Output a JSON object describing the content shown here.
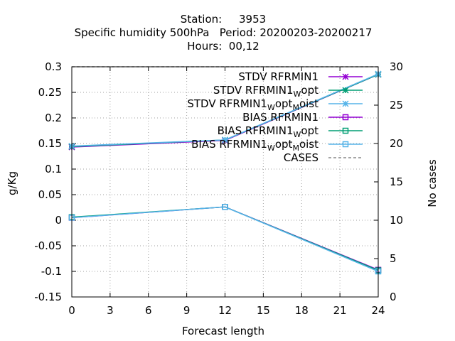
{
  "chart_data": {
    "type": "line",
    "title_lines": [
      "Station:     3953",
      "Specific humidity 500hPa   Period: 20200203-20200217",
      "Hours:  00,12"
    ],
    "xlabel": "Forecast length",
    "ylabel": "g/Kg",
    "y2label": "No cases",
    "x_ticks": [
      0,
      3,
      6,
      9,
      12,
      15,
      18,
      21,
      24
    ],
    "y_ticks": [
      -0.15,
      -0.1,
      -0.05,
      0,
      0.05,
      0.1,
      0.15,
      0.2,
      0.25,
      0.3
    ],
    "y_tick_labels": [
      "-0.15",
      "-0.1",
      "-0.05",
      "0",
      "0.05",
      "0.1",
      "0.15",
      "0.2",
      "0.25",
      "0.3"
    ],
    "y2_ticks": [
      0,
      5,
      10,
      15,
      20,
      25,
      30
    ],
    "xlim": [
      0,
      24
    ],
    "ylim": [
      -0.15,
      0.3
    ],
    "y2lim": [
      0,
      30
    ],
    "grid": true,
    "legend_position": "top-right",
    "series": [
      {
        "name": "STDV RFRMIN1",
        "name_parts": [
          {
            "text": "STDV RFRMIN1"
          }
        ],
        "color": "#9400d3",
        "marker": "star",
        "axis": "y",
        "x": [
          0,
          12,
          24
        ],
        "values": [
          0.143,
          0.156,
          0.285
        ]
      },
      {
        "name": "STDV RFRMIN1_W opt",
        "name_parts": [
          {
            "text": "STDV RFRMIN1"
          },
          {
            "text": "W",
            "sub": true
          },
          {
            "text": "opt"
          }
        ],
        "color": "#009e73",
        "marker": "star",
        "axis": "y",
        "x": [
          0,
          12,
          24
        ],
        "values": [
          0.144,
          0.157,
          0.285
        ]
      },
      {
        "name": "STDV RFRMIN1_W opt_M oist",
        "name_parts": [
          {
            "text": "STDV RFRMIN1"
          },
          {
            "text": "W",
            "sub": true
          },
          {
            "text": "opt"
          },
          {
            "text": "M",
            "sub": true
          },
          {
            "text": "oist"
          }
        ],
        "color": "#56b4e9",
        "marker": "star",
        "axis": "y",
        "x": [
          0,
          12,
          24
        ],
        "values": [
          0.145,
          0.157,
          0.286
        ]
      },
      {
        "name": "BIAS RFRMIN1",
        "name_parts": [
          {
            "text": "BIAS RFRMIN1"
          }
        ],
        "color": "#9400d3",
        "marker": "square",
        "axis": "y",
        "x": [
          0,
          12,
          24
        ],
        "values": [
          0.005,
          0.026,
          -0.097
        ]
      },
      {
        "name": "BIAS RFRMIN1_W opt",
        "name_parts": [
          {
            "text": "BIAS RFRMIN1"
          },
          {
            "text": "W",
            "sub": true
          },
          {
            "text": "opt"
          }
        ],
        "color": "#009e73",
        "marker": "square",
        "axis": "y",
        "x": [
          0,
          12,
          24
        ],
        "values": [
          0.006,
          0.026,
          -0.098
        ]
      },
      {
        "name": "BIAS RFRMIN1_W opt_M oist",
        "name_parts": [
          {
            "text": "BIAS RFRMIN1"
          },
          {
            "text": "W",
            "sub": true
          },
          {
            "text": "opt"
          },
          {
            "text": "M",
            "sub": true
          },
          {
            "text": "oist"
          }
        ],
        "color": "#56b4e9",
        "marker": "square",
        "axis": "y",
        "x": [
          0,
          12,
          24
        ],
        "values": [
          0.005,
          0.026,
          -0.1
        ]
      },
      {
        "name": "CASES",
        "name_parts": [
          {
            "text": "CASES"
          }
        ],
        "color": "#888888",
        "marker": "none",
        "dashed": true,
        "axis": "y2",
        "x": [
          0,
          12,
          24
        ],
        "values": [
          30,
          30,
          30
        ]
      }
    ]
  }
}
